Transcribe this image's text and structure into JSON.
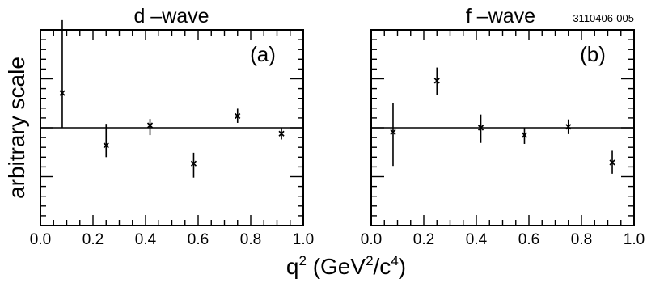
{
  "figure": {
    "id_tag": "3110406-005",
    "ylabel": "arbitrary scale",
    "xlabel_base": "q",
    "xlabel_sup1": "2",
    "xlabel_mid": " (GeV",
    "xlabel_sup2": "2",
    "xlabel_mid2": "/c",
    "xlabel_sup3": "4",
    "xlabel_end": ")"
  },
  "chart_data": [
    {
      "type": "scatter",
      "title": "d –wave",
      "panel_label": "(a)",
      "xlim": [
        0.0,
        1.0
      ],
      "ylim": [
        -2.0,
        2.0
      ],
      "reference_line_y": 0,
      "xticks": [
        "0.0",
        "0.2",
        "0.4",
        "0.6",
        "0.8",
        "1.0"
      ],
      "yticks_shown": false,
      "points": [
        {
          "x": 0.083,
          "y": 0.71,
          "err_lo": 0.71,
          "err_hi": 1.49
        },
        {
          "x": 0.25,
          "y": -0.36,
          "err_lo": 0.24,
          "err_hi": 0.44
        },
        {
          "x": 0.417,
          "y": 0.05,
          "err_lo": 0.2,
          "err_hi": 0.13
        },
        {
          "x": 0.583,
          "y": -0.73,
          "err_lo": 0.29,
          "err_hi": 0.22
        },
        {
          "x": 0.75,
          "y": 0.24,
          "err_lo": 0.14,
          "err_hi": 0.15
        },
        {
          "x": 0.917,
          "y": -0.12,
          "err_lo": 0.12,
          "err_hi": 0.12
        }
      ]
    },
    {
      "type": "scatter",
      "title": "f –wave",
      "panel_label": "(b)",
      "xlim": [
        0.0,
        1.0
      ],
      "ylim": [
        -2.0,
        2.0
      ],
      "reference_line_y": 0,
      "xticks": [
        "0.0",
        "0.2",
        "0.4",
        "0.6",
        "0.8",
        "1.0"
      ],
      "yticks_shown": false,
      "points": [
        {
          "x": 0.083,
          "y": -0.09,
          "err_lo": 0.69,
          "err_hi": 0.59
        },
        {
          "x": 0.25,
          "y": 0.96,
          "err_lo": 0.29,
          "err_hi": 0.27
        },
        {
          "x": 0.417,
          "y": 0.0,
          "err_lo": 0.31,
          "err_hi": 0.27
        },
        {
          "x": 0.583,
          "y": -0.15,
          "err_lo": 0.18,
          "err_hi": 0.15
        },
        {
          "x": 0.75,
          "y": 0.02,
          "err_lo": 0.15,
          "err_hi": 0.15
        },
        {
          "x": 0.917,
          "y": -0.71,
          "err_lo": 0.23,
          "err_hi": 0.24
        }
      ]
    }
  ]
}
